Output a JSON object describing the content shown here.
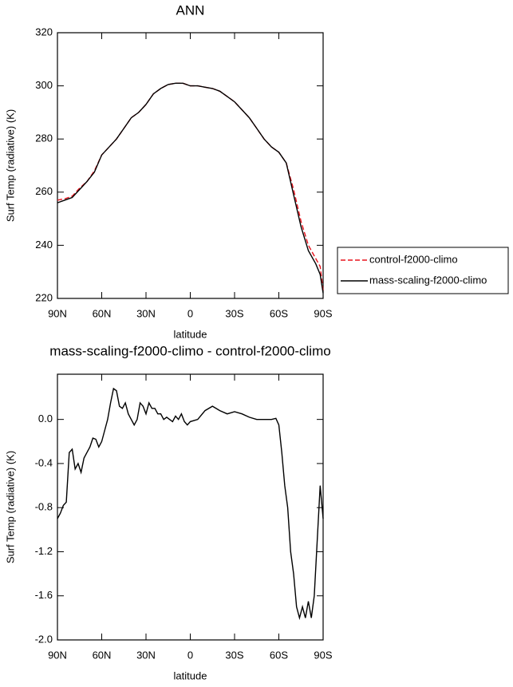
{
  "chart_data": [
    {
      "type": "line",
      "title": "ANN",
      "xlabel": "latitude",
      "ylabel": "Surf Temp (radiative) (K)",
      "x": [
        90,
        85,
        80,
        75,
        70,
        65,
        60,
        55,
        50,
        45,
        40,
        35,
        30,
        25,
        20,
        15,
        10,
        5,
        0,
        -5,
        -10,
        -15,
        -20,
        -25,
        -30,
        -35,
        -40,
        -45,
        -50,
        -55,
        -60,
        -65,
        -70,
        -75,
        -80,
        -85,
        -88,
        -90
      ],
      "series": [
        {
          "name": "control-f2000-climo",
          "color": "#e8141e",
          "dash": true,
          "values": [
            257,
            257.5,
            258.5,
            261.5,
            264,
            268,
            274,
            277,
            280,
            284,
            288,
            290,
            293,
            297,
            299,
            300.5,
            301,
            301,
            300,
            300,
            299.5,
            299,
            298,
            296,
            294,
            291,
            288,
            284,
            280,
            277,
            275,
            271,
            261,
            249,
            240,
            235,
            232,
            223
          ]
        },
        {
          "name": "mass-scaling-f2000-climo",
          "color": "#000000",
          "dash": false,
          "values": [
            256,
            257,
            258,
            261,
            264,
            267.5,
            274,
            277,
            280,
            284,
            288,
            290,
            293,
            297,
            299,
            300.5,
            301,
            301,
            300,
            300,
            299.5,
            299,
            298,
            296,
            294,
            291,
            288,
            284,
            280,
            277,
            275,
            271,
            259,
            247,
            238,
            233,
            229,
            222
          ]
        }
      ],
      "xlim": [
        90,
        -90
      ],
      "ylim": [
        220,
        320
      ],
      "xticks": [
        {
          "value": 90,
          "label": "90N"
        },
        {
          "value": 60,
          "label": "60N"
        },
        {
          "value": 30,
          "label": "30N"
        },
        0,
        {
          "value": -30,
          "label": "30S"
        },
        {
          "value": -60,
          "label": "60S"
        },
        {
          "value": -90,
          "label": "90S"
        }
      ],
      "yticks": [
        220,
        240,
        260,
        280,
        300,
        320
      ],
      "legend": "right"
    },
    {
      "type": "line",
      "title": "mass-scaling-f2000-climo - control-f2000-climo",
      "xlabel": "latitude",
      "ylabel": "Surf Temp (radiative) (K)",
      "x": [
        90,
        88,
        86,
        84,
        82,
        80,
        78,
        76,
        74,
        72,
        70,
        68,
        66,
        64,
        62,
        60,
        58,
        56,
        54,
        52,
        50,
        48,
        46,
        44,
        42,
        40,
        38,
        36,
        34,
        32,
        30,
        28,
        26,
        24,
        22,
        20,
        18,
        16,
        14,
        12,
        10,
        8,
        6,
        4,
        2,
        0,
        -5,
        -10,
        -15,
        -20,
        -25,
        -30,
        -35,
        -40,
        -45,
        -50,
        -55,
        -58,
        -60,
        -62,
        -64,
        -66,
        -68,
        -70,
        -72,
        -74,
        -76,
        -78,
        -80,
        -82,
        -84,
        -86,
        -88,
        -90
      ],
      "series": [
        {
          "name": "mass-scaling-f2000-climo - control-f2000-climo",
          "color": "#000000",
          "dash": false,
          "values": [
            -0.9,
            -0.85,
            -0.78,
            -0.75,
            -0.3,
            -0.27,
            -0.45,
            -0.4,
            -0.48,
            -0.35,
            -0.3,
            -0.25,
            -0.17,
            -0.18,
            -0.25,
            -0.2,
            -0.1,
            0.0,
            0.15,
            0.28,
            0.26,
            0.12,
            0.1,
            0.15,
            0.05,
            0.0,
            -0.05,
            0.0,
            0.15,
            0.12,
            0.05,
            0.15,
            0.1,
            0.1,
            0.05,
            0.05,
            0.0,
            0.02,
            0.0,
            -0.02,
            0.03,
            0.0,
            0.05,
            -0.02,
            -0.05,
            -0.02,
            0.0,
            0.08,
            0.12,
            0.08,
            0.05,
            0.07,
            0.05,
            0.02,
            0.0,
            0.0,
            0.0,
            0.01,
            -0.05,
            -0.3,
            -0.6,
            -0.8,
            -1.2,
            -1.4,
            -1.7,
            -1.8,
            -1.7,
            -1.8,
            -1.65,
            -1.8,
            -1.6,
            -1.1,
            -0.6,
            -0.9
          ]
        }
      ],
      "xlim": [
        90,
        -90
      ],
      "ylim": [
        -2.0,
        0.41
      ],
      "xticks": [
        {
          "value": 90,
          "label": "90N"
        },
        {
          "value": 60,
          "label": "60N"
        },
        {
          "value": 30,
          "label": "30N"
        },
        0,
        {
          "value": -30,
          "label": "30S"
        },
        {
          "value": -60,
          "label": "60S"
        },
        {
          "value": -90,
          "label": "90S"
        }
      ],
      "yticks": [
        {
          "value": -2.0,
          "label": "-2.0"
        },
        -1.6,
        -1.2,
        -0.8,
        -0.4,
        {
          "value": 0,
          "label": "0.0"
        }
      ]
    }
  ]
}
